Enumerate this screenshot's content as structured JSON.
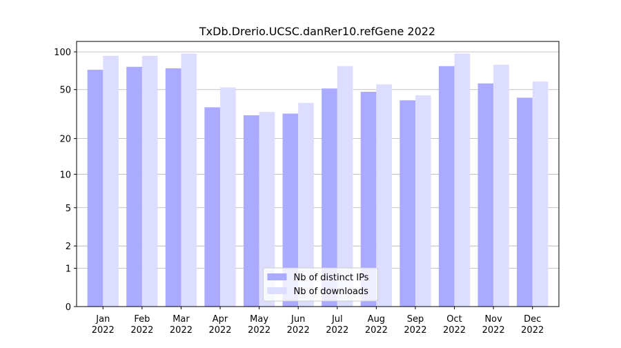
{
  "chart_data": {
    "type": "bar",
    "title": "TxDb.Drerio.UCSC.danRer10.refGene 2022",
    "categories": [
      "Jan\n2022",
      "Feb\n2022",
      "Mar\n2022",
      "Apr\n2022",
      "May\n2022",
      "Jun\n2022",
      "Jul\n2022",
      "Aug\n2022",
      "Sep\n2022",
      "Oct\n2022",
      "Nov\n2022",
      "Dec\n2022"
    ],
    "series": [
      {
        "name": "Nb of distinct IPs",
        "color": "#aaaaff",
        "values": [
          72,
          76,
          74,
          36,
          31,
          32,
          51,
          48,
          41,
          77,
          56,
          43
        ]
      },
      {
        "name": "Nb of downloads",
        "color": "#ddddff",
        "values": [
          93,
          93,
          97,
          52,
          33,
          39,
          77,
          55,
          45,
          97,
          79,
          58
        ]
      }
    ],
    "yscale": "log1p",
    "ylim": [
      0,
      121
    ],
    "yticks": [
      0,
      1,
      2,
      5,
      10,
      20,
      50,
      100
    ],
    "grid": true,
    "legend": "lower center"
  }
}
